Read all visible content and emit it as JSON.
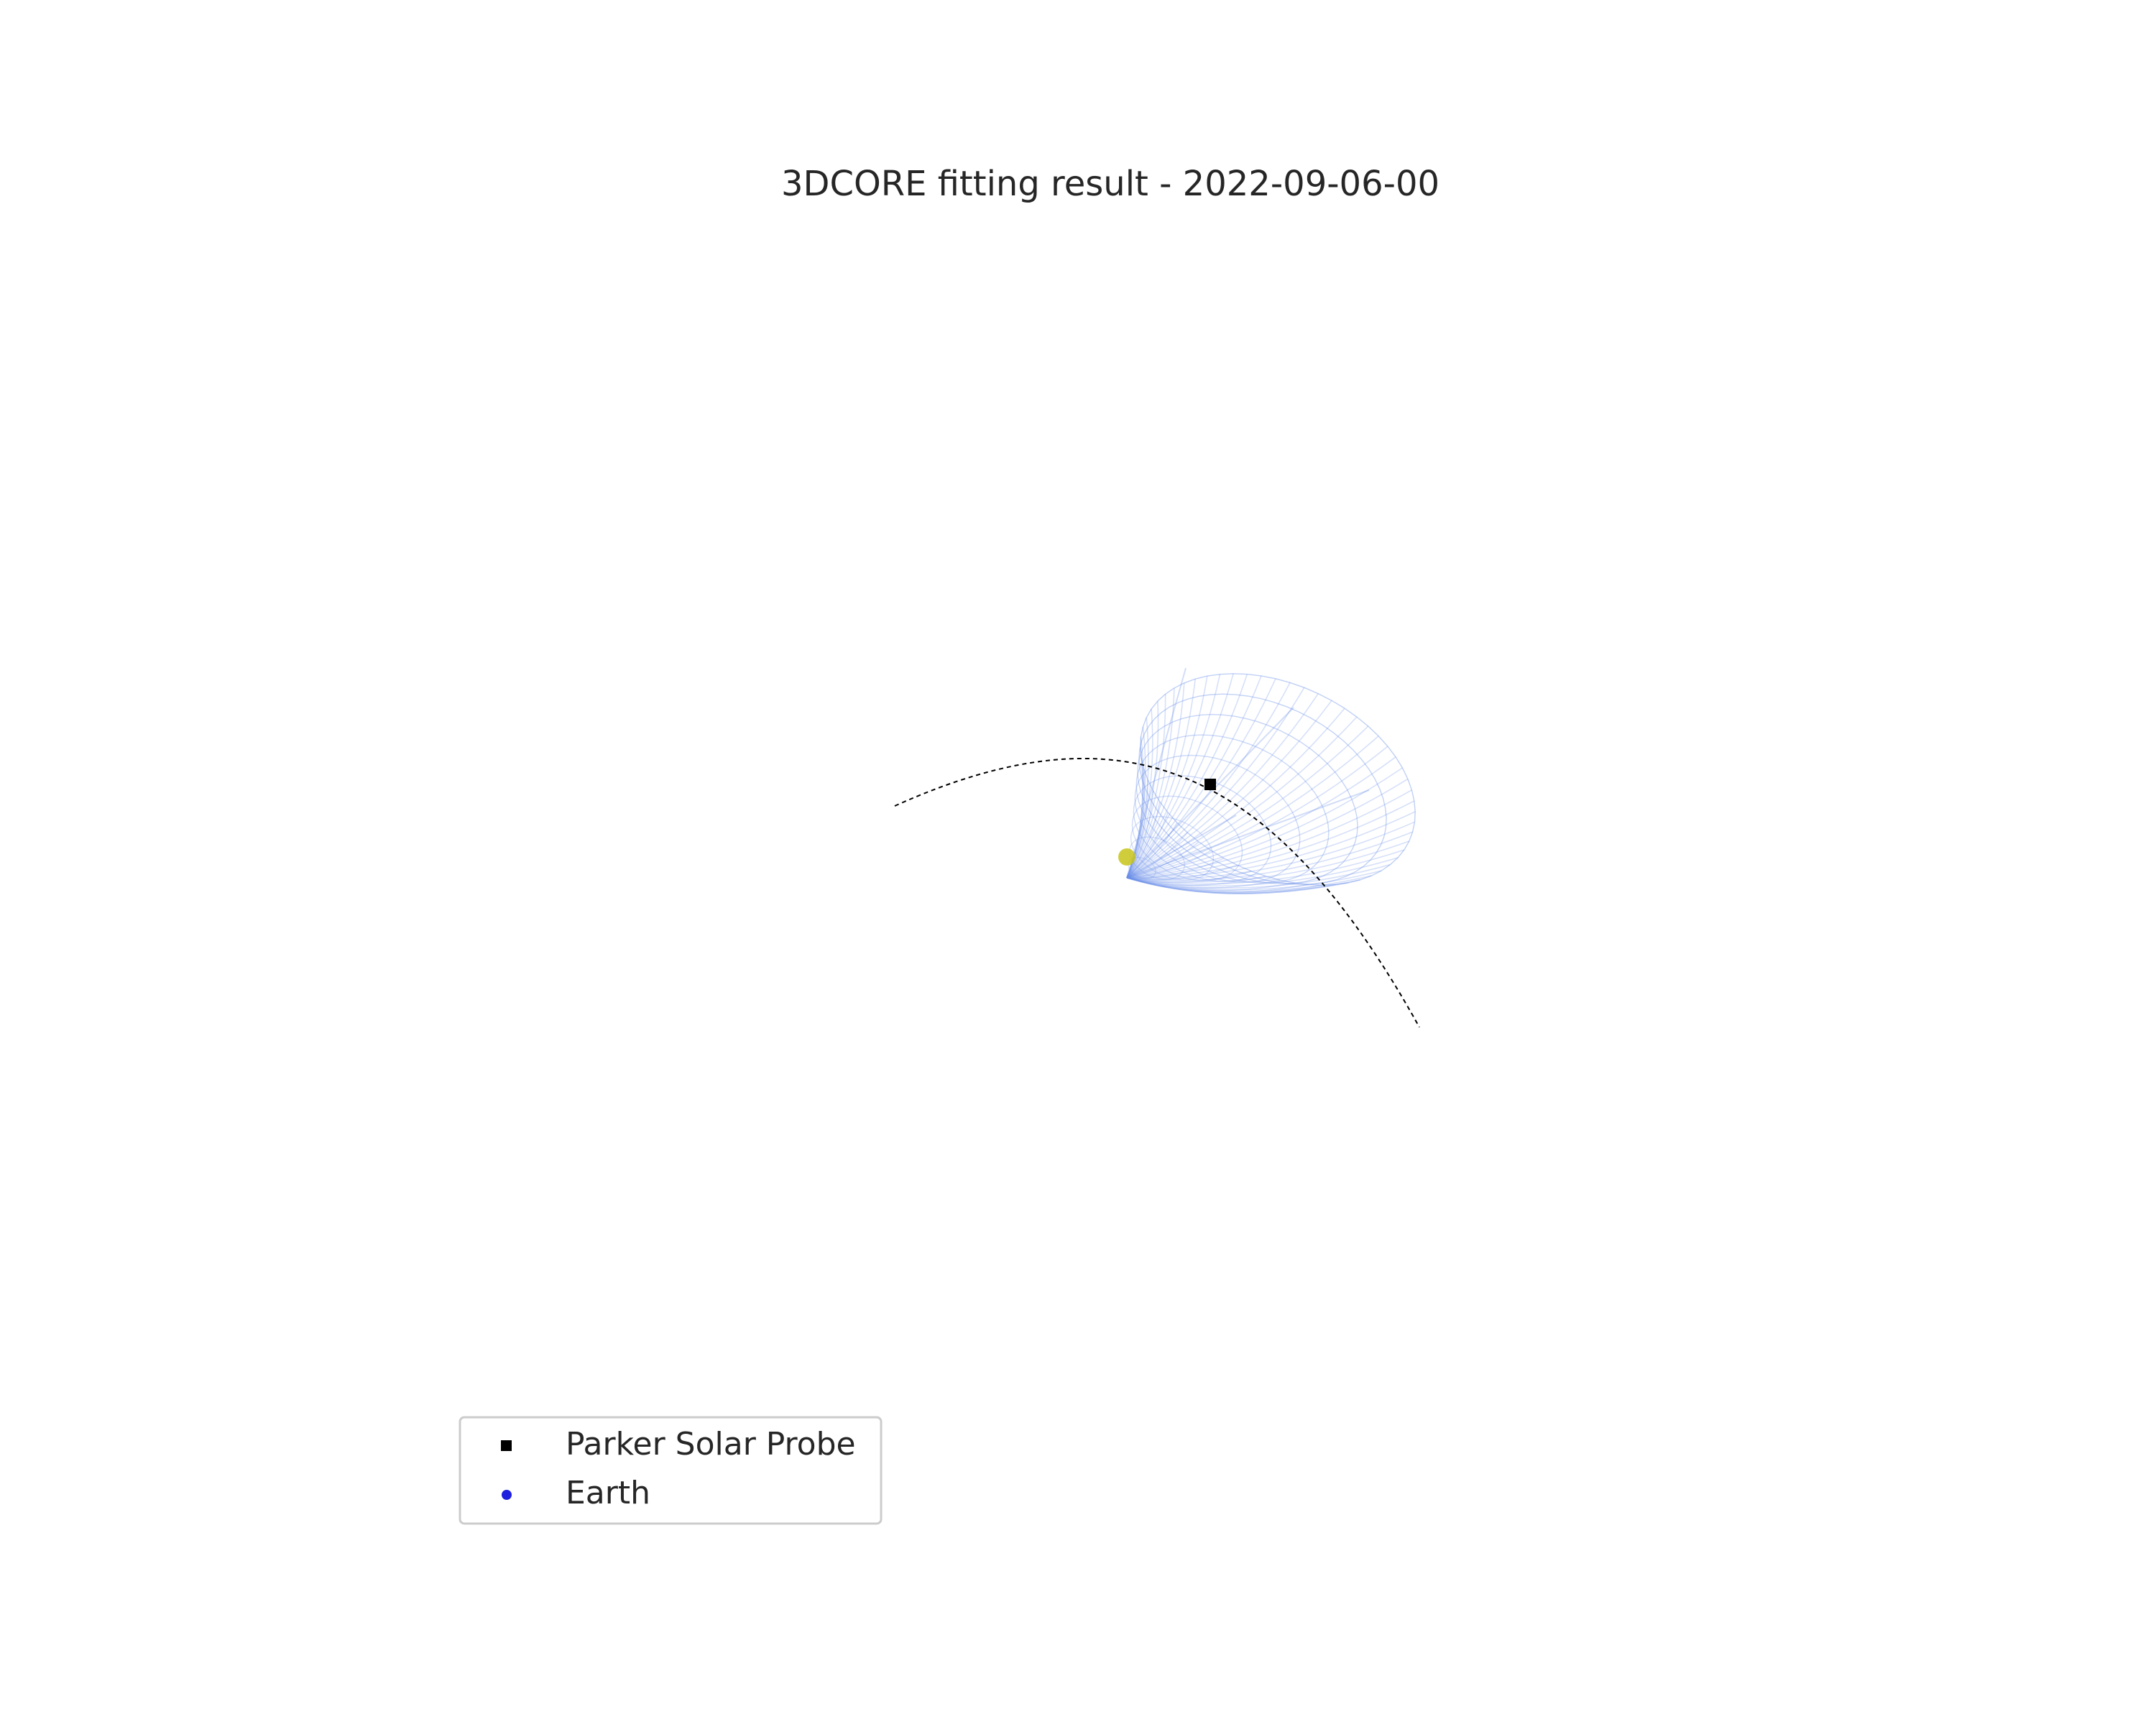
{
  "chart_data": {
    "type": "scatter",
    "title": "3DCORE fitting result - 2022-09-06-00",
    "xlabel": "",
    "ylabel": "",
    "grid": false,
    "axes_visible": false,
    "legend": {
      "placement": "lower-left",
      "entries": [
        {
          "label": "Parker Solar Probe",
          "marker": "square",
          "color": "#000000"
        },
        {
          "label": "Earth",
          "marker": "circle",
          "color": "#1f1fdd"
        }
      ]
    },
    "series": [
      {
        "name": "Parker Solar Probe",
        "marker": "square",
        "color": "#000000"
      },
      {
        "name": "Sun",
        "marker": "circle",
        "color": "#c8c41a"
      },
      {
        "name": "flux rope",
        "style": "wireframe",
        "color": "#6a8fe8"
      },
      {
        "name": "trajectory",
        "style": "dashed",
        "color": "#000000"
      }
    ]
  }
}
